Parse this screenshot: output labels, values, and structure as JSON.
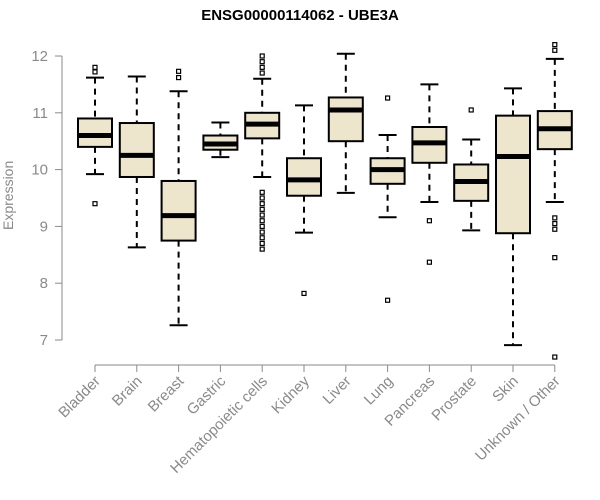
{
  "chart_data": {
    "type": "box",
    "title": "ENSG00000114062 - UBE3A",
    "xlabel": "",
    "ylabel": "Expression",
    "ylim": [
      6.7,
      12.3
    ],
    "yticks": [
      7,
      8,
      9,
      10,
      11,
      12
    ],
    "box_color": "#ede6cc",
    "axis_color": "#8a8a8a",
    "categories": [
      "Bladder",
      "Brain",
      "Breast",
      "Gastric",
      "Hematopoietic cells",
      "Kidney",
      "Liver",
      "Lung",
      "Pancreas",
      "Prostate",
      "Skin",
      "Unknown / Other"
    ],
    "boxes": [
      {
        "whisker_low": 9.92,
        "q1": 10.4,
        "median": 10.6,
        "q3": 10.9,
        "whisker_high": 11.62,
        "outliers": [
          9.4,
          11.72,
          11.8
        ]
      },
      {
        "whisker_low": 8.63,
        "q1": 9.87,
        "median": 10.25,
        "q3": 10.82,
        "whisker_high": 11.64,
        "outliers": []
      },
      {
        "whisker_low": 7.26,
        "q1": 8.75,
        "median": 9.19,
        "q3": 9.8,
        "whisker_high": 11.38,
        "outliers": [
          11.62,
          11.73
        ]
      },
      {
        "whisker_low": 10.22,
        "q1": 10.35,
        "median": 10.45,
        "q3": 10.6,
        "whisker_high": 10.83,
        "outliers": []
      },
      {
        "whisker_low": 9.87,
        "q1": 10.55,
        "median": 10.8,
        "q3": 11.0,
        "whisker_high": 11.6,
        "outliers": [
          8.6,
          8.7,
          8.8,
          8.9,
          9.0,
          9.1,
          9.2,
          9.3,
          9.4,
          9.5,
          9.6,
          11.7,
          11.8,
          11.9,
          12.0
        ]
      },
      {
        "whisker_low": 8.89,
        "q1": 9.54,
        "median": 9.82,
        "q3": 10.2,
        "whisker_high": 11.13,
        "outliers": [
          7.82
        ]
      },
      {
        "whisker_low": 9.59,
        "q1": 10.5,
        "median": 11.05,
        "q3": 11.27,
        "whisker_high": 12.04,
        "outliers": []
      },
      {
        "whisker_low": 9.16,
        "q1": 9.75,
        "median": 10.0,
        "q3": 10.2,
        "whisker_high": 10.61,
        "outliers": [
          7.7,
          11.26
        ]
      },
      {
        "whisker_low": 9.43,
        "q1": 10.12,
        "median": 10.47,
        "q3": 10.75,
        "whisker_high": 11.5,
        "outliers": [
          8.37,
          9.1
        ]
      },
      {
        "whisker_low": 8.93,
        "q1": 9.45,
        "median": 9.79,
        "q3": 10.09,
        "whisker_high": 10.53,
        "outliers": [
          11.05
        ]
      },
      {
        "whisker_low": 6.91,
        "q1": 8.88,
        "median": 10.23,
        "q3": 10.95,
        "whisker_high": 11.43,
        "outliers": []
      },
      {
        "whisker_low": 9.43,
        "q1": 10.36,
        "median": 10.72,
        "q3": 11.03,
        "whisker_high": 11.95,
        "outliers": [
          6.7,
          8.45,
          8.95,
          9.05,
          9.15,
          12.1,
          12.2
        ]
      }
    ]
  }
}
